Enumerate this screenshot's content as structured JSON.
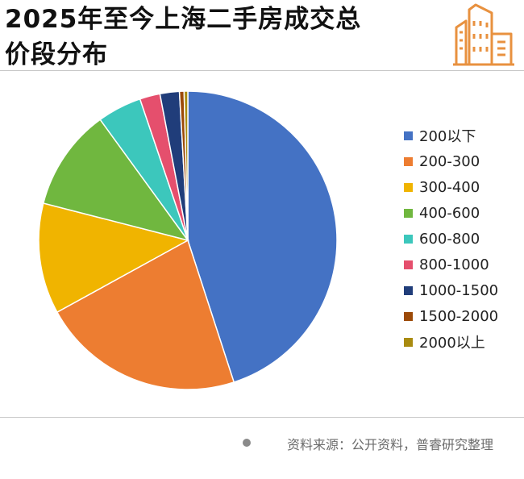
{
  "title": {
    "line1": "2025年至今上海二手房成交总",
    "line2": "价段分布"
  },
  "logo_icon": "buildings-icon",
  "colors": {
    "accent": "#E8913F",
    "divider": "#C8C8C8"
  },
  "chart_data": {
    "type": "pie",
    "title": "2025年至今上海二手房成交总价段分布",
    "categories": [
      "200以下",
      "200-300",
      "300-400",
      "400-600",
      "600-800",
      "800-1000",
      "1000-1500",
      "1500-2000",
      "2000以上"
    ],
    "values": [
      45.0,
      22.0,
      12.0,
      11.0,
      4.8,
      2.2,
      2.1,
      0.5,
      0.4
    ],
    "unit": "%",
    "colors": [
      "#4472C4",
      "#ED7D31",
      "#F0B400",
      "#70B73F",
      "#3CC7BC",
      "#E54F6D",
      "#203D7A",
      "#9C4A08",
      "#A98B10"
    ],
    "start_angle_deg": 0,
    "direction": "clockwise",
    "legend_position": "right"
  },
  "legend": {
    "items": [
      {
        "label": "200以下",
        "color": "#4472C4"
      },
      {
        "label": "200-300",
        "color": "#ED7D31"
      },
      {
        "label": "300-400",
        "color": "#F0B400"
      },
      {
        "label": "400-600",
        "color": "#70B73F"
      },
      {
        "label": "600-800",
        "color": "#3CC7BC"
      },
      {
        "label": "800-1000",
        "color": "#E54F6D"
      },
      {
        "label": "1000-1500",
        "color": "#203D7A"
      },
      {
        "label": "1500-2000",
        "color": "#9C4A08"
      },
      {
        "label": "2000以上",
        "color": "#A98B10"
      }
    ]
  },
  "footer": {
    "source": "资料来源：公开资料，普睿研究整理"
  }
}
